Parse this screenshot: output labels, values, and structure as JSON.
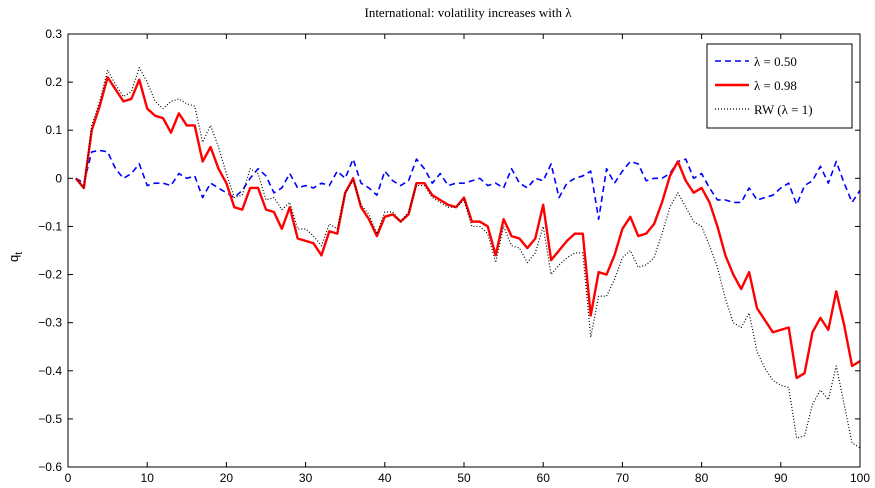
{
  "chart_data": {
    "type": "line",
    "title": "International: volatility increases with λ",
    "xlabel": "",
    "ylabel": "q",
    "ylabel_subscript": "t",
    "xlim": [
      0,
      100
    ],
    "ylim": [
      -0.6,
      0.3
    ],
    "xticks": [
      0,
      10,
      20,
      30,
      40,
      50,
      60,
      70,
      80,
      90,
      100
    ],
    "yticks": [
      -0.6,
      -0.5,
      -0.4,
      -0.3,
      -0.2,
      -0.1,
      0,
      0.1,
      0.2,
      0.3
    ],
    "ytick_labels": [
      "−0.6",
      "−0.5",
      "−0.4",
      "−0.3",
      "−0.2",
      "−0.1",
      "0",
      "0.1",
      "0.2",
      "0.3"
    ],
    "xtick_labels": [
      "0",
      "10",
      "20",
      "30",
      "40",
      "50",
      "60",
      "70",
      "80",
      "90",
      "100"
    ],
    "grid": false,
    "legend_position": "top-right",
    "x": [
      1,
      2,
      3,
      4,
      5,
      6,
      7,
      8,
      9,
      10,
      11,
      12,
      13,
      14,
      15,
      16,
      17,
      18,
      19,
      20,
      21,
      22,
      23,
      24,
      25,
      26,
      27,
      28,
      29,
      30,
      31,
      32,
      33,
      34,
      35,
      36,
      37,
      38,
      39,
      40,
      41,
      42,
      43,
      44,
      45,
      46,
      47,
      48,
      49,
      50,
      51,
      52,
      53,
      54,
      55,
      56,
      57,
      58,
      59,
      60,
      61,
      62,
      63,
      64,
      65,
      66,
      67,
      68,
      69,
      70,
      71,
      72,
      73,
      74,
      75,
      76,
      77,
      78,
      79,
      80,
      81,
      82,
      83,
      84,
      85,
      86,
      87,
      88,
      89,
      90,
      91,
      92,
      93,
      94,
      95,
      96,
      97,
      98,
      99,
      100
    ],
    "series": [
      {
        "name": "λ = 0.50",
        "color": "#0000ff",
        "style": "dashed",
        "values": [
          0,
          -0.01,
          0.055,
          0.058,
          0.055,
          0.02,
          0.0,
          0.01,
          0.03,
          -0.015,
          -0.01,
          -0.01,
          -0.015,
          0.01,
          0.0,
          0.005,
          -0.04,
          -0.01,
          -0.02,
          -0.03,
          -0.04,
          -0.025,
          0.0,
          0.02,
          0.005,
          -0.03,
          -0.02,
          0.01,
          -0.02,
          -0.015,
          -0.02,
          -0.01,
          -0.015,
          0.015,
          0.0,
          0.04,
          -0.01,
          -0.02,
          -0.035,
          0.015,
          -0.005,
          -0.015,
          -0.005,
          0.04,
          0.02,
          -0.01,
          0.01,
          -0.015,
          -0.01,
          -0.01,
          -0.005,
          0.0,
          -0.015,
          -0.01,
          -0.02,
          0.02,
          -0.01,
          -0.02,
          0.0,
          -0.005,
          0.03,
          -0.04,
          -0.01,
          0.0,
          0.005,
          0.015,
          -0.085,
          0.02,
          -0.01,
          0.015,
          0.035,
          0.03,
          -0.005,
          0.0,
          0.0,
          0.01,
          0.035,
          0.04,
          0.0,
          0.01,
          -0.02,
          -0.045,
          -0.045,
          -0.05,
          -0.05,
          -0.02,
          -0.045,
          -0.04,
          -0.035,
          -0.02,
          -0.01,
          -0.055,
          -0.015,
          -0.005,
          0.025,
          -0.01,
          0.035,
          -0.01,
          -0.05,
          -0.025
        ]
      },
      {
        "name": "λ = 0.98",
        "color": "#ff0000",
        "style": "solid",
        "values": [
          0,
          -0.02,
          0.1,
          0.15,
          0.21,
          0.185,
          0.16,
          0.165,
          0.205,
          0.145,
          0.13,
          0.125,
          0.095,
          0.135,
          0.11,
          0.11,
          0.035,
          0.065,
          0.02,
          -0.01,
          -0.06,
          -0.065,
          -0.02,
          -0.02,
          -0.065,
          -0.07,
          -0.105,
          -0.06,
          -0.125,
          -0.13,
          -0.135,
          -0.16,
          -0.11,
          -0.115,
          -0.03,
          0.0,
          -0.06,
          -0.085,
          -0.12,
          -0.08,
          -0.075,
          -0.09,
          -0.075,
          -0.01,
          -0.01,
          -0.035,
          -0.045,
          -0.055,
          -0.06,
          -0.04,
          -0.09,
          -0.09,
          -0.1,
          -0.16,
          -0.085,
          -0.12,
          -0.125,
          -0.145,
          -0.125,
          -0.055,
          -0.17,
          -0.15,
          -0.13,
          -0.115,
          -0.115,
          -0.285,
          -0.195,
          -0.2,
          -0.16,
          -0.105,
          -0.08,
          -0.12,
          -0.115,
          -0.095,
          -0.05,
          0.005,
          0.035,
          -0.005,
          -0.03,
          -0.02,
          -0.05,
          -0.1,
          -0.16,
          -0.2,
          -0.23,
          -0.195,
          -0.27,
          -0.295,
          -0.32,
          -0.315,
          -0.31,
          -0.415,
          -0.405,
          -0.32,
          -0.29,
          -0.315,
          -0.235,
          -0.305,
          -0.39,
          -0.38
        ]
      },
      {
        "name": "RW (λ = 1)",
        "color": "#000000",
        "style": "dotted",
        "values": [
          0,
          -0.02,
          0.11,
          0.16,
          0.225,
          0.195,
          0.17,
          0.18,
          0.23,
          0.2,
          0.16,
          0.145,
          0.16,
          0.165,
          0.155,
          0.15,
          0.075,
          0.11,
          0.065,
          0.01,
          -0.04,
          -0.035,
          0.02,
          0.01,
          -0.045,
          -0.04,
          -0.065,
          -0.05,
          -0.105,
          -0.105,
          -0.12,
          -0.14,
          -0.095,
          -0.105,
          -0.03,
          -0.005,
          -0.055,
          -0.075,
          -0.115,
          -0.07,
          -0.07,
          -0.09,
          -0.07,
          -0.015,
          -0.015,
          -0.04,
          -0.05,
          -0.06,
          -0.06,
          -0.045,
          -0.1,
          -0.1,
          -0.115,
          -0.175,
          -0.1,
          -0.14,
          -0.145,
          -0.175,
          -0.155,
          -0.1,
          -0.2,
          -0.18,
          -0.165,
          -0.155,
          -0.155,
          -0.33,
          -0.245,
          -0.245,
          -0.21,
          -0.165,
          -0.15,
          -0.185,
          -0.18,
          -0.165,
          -0.115,
          -0.06,
          -0.03,
          -0.06,
          -0.09,
          -0.1,
          -0.14,
          -0.185,
          -0.25,
          -0.3,
          -0.31,
          -0.28,
          -0.36,
          -0.395,
          -0.42,
          -0.43,
          -0.435,
          -0.54,
          -0.535,
          -0.47,
          -0.44,
          -0.46,
          -0.39,
          -0.47,
          -0.55,
          -0.56
        ]
      }
    ]
  }
}
